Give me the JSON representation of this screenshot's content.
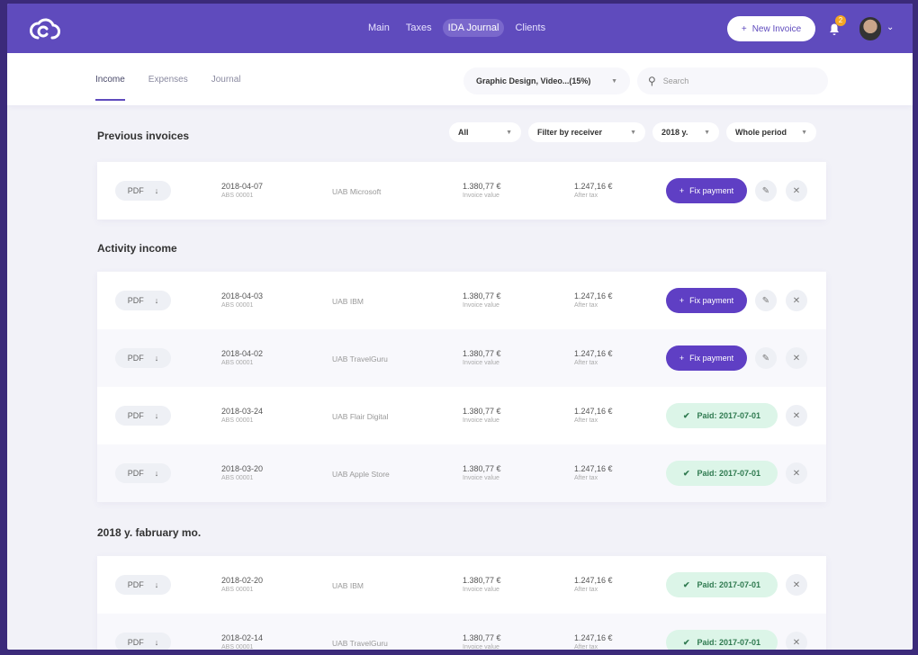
{
  "nav": {
    "links": [
      "Main",
      "Taxes",
      "IDA Journal",
      "Clients"
    ],
    "active": 2,
    "new_invoice": "New Invoice",
    "notifications": "2"
  },
  "subnav": {
    "tabs": [
      "Income",
      "Expenses",
      "Journal"
    ],
    "active": 0,
    "category": "Graphic Design, Video...(15%)",
    "search_placeholder": "Search"
  },
  "filters": [
    "All",
    "Filter by receiver",
    "2018 y.",
    "Whole period"
  ],
  "labels": {
    "invoice_value": "Invoice value",
    "after_tax": "After tax",
    "pdf": "PDF",
    "fix": "Fix payment"
  },
  "sections": [
    {
      "title": "Previous invoices",
      "rows": [
        {
          "date": "2018-04-07",
          "ref": "ABS 00001",
          "company": "UAB Microsoft",
          "value": "1.380,77 €",
          "after": "1.247,16 €",
          "status": "fix"
        }
      ]
    },
    {
      "title": "Activity income",
      "rows": [
        {
          "date": "2018-04-03",
          "ref": "ABS 00001",
          "company": "UAB IBM",
          "value": "1.380,77 €",
          "after": "1.247,16 €",
          "status": "fix"
        },
        {
          "date": "2018-04-02",
          "ref": "ABS 00001",
          "company": "UAB TravelGuru",
          "value": "1.380,77 €",
          "after": "1.247,16 €",
          "status": "fix"
        },
        {
          "date": "2018-03-24",
          "ref": "ABS 00001",
          "company": "UAB Flair Digital",
          "value": "1.380,77 €",
          "after": "1.247,16 €",
          "status": "paid",
          "paid": "Paid: 2017-07-01"
        },
        {
          "date": "2018-03-20",
          "ref": "ABS 00001",
          "company": "UAB Apple Store",
          "value": "1.380,77 €",
          "after": "1.247,16 €",
          "status": "paid",
          "paid": "Paid: 2017-07-01"
        }
      ]
    },
    {
      "title": "2018 y. fabruary mo.",
      "rows": [
        {
          "date": "2018-02-20",
          "ref": "ABS 00001",
          "company": "UAB IBM",
          "value": "1.380,77 €",
          "after": "1.247,16 €",
          "status": "paid",
          "paid": "Paid: 2017-07-01"
        },
        {
          "date": "2018-02-14",
          "ref": "ABS 00001",
          "company": "UAB TravelGuru",
          "value": "1.380,77 €",
          "after": "1.247,16 €",
          "status": "paid",
          "paid": "Paid: 2017-07-01"
        }
      ]
    }
  ]
}
